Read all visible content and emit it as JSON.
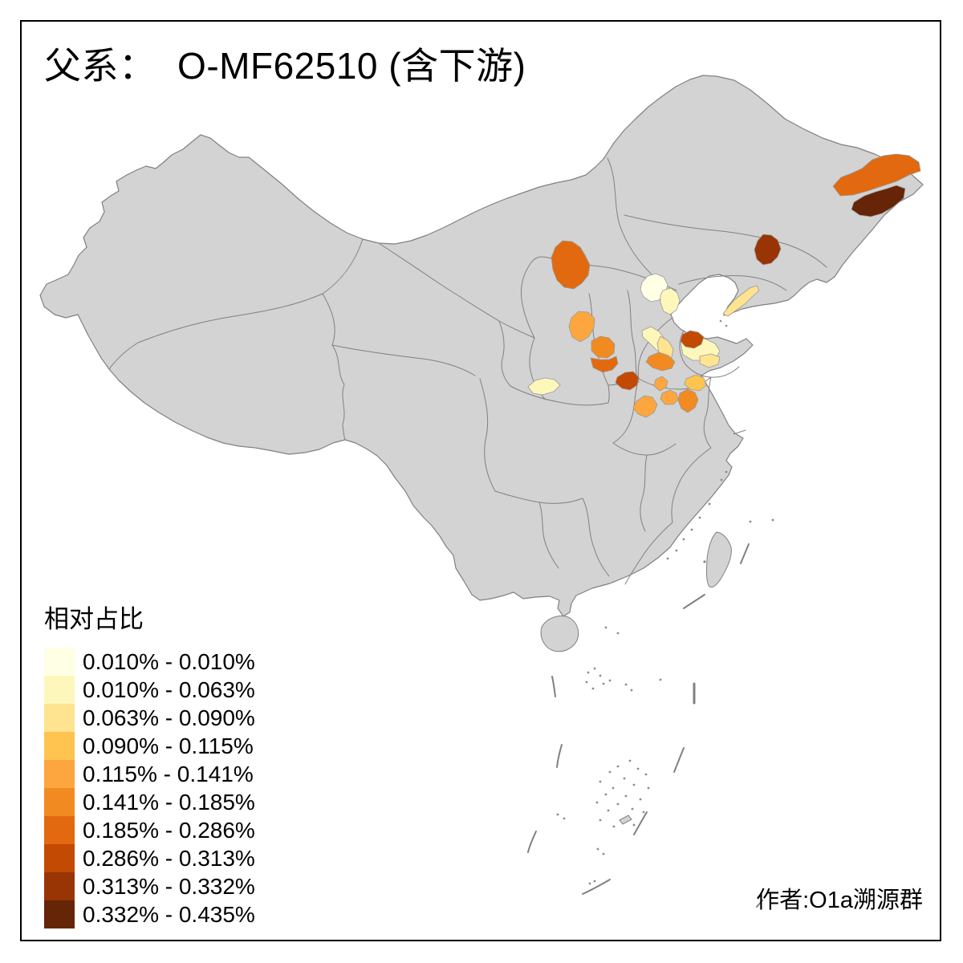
{
  "title": "父系：  O-MF62510 (含下游)",
  "attribution": "作者:O1a溯源群",
  "legend": {
    "title": "相对占比",
    "classes": [
      {
        "label": "0.010% - 0.010%",
        "color": "#FFFFE5"
      },
      {
        "label": "0.010% - 0.063%",
        "color": "#FEF7BC"
      },
      {
        "label": "0.063% - 0.090%",
        "color": "#FEE391"
      },
      {
        "label": "0.090% - 0.115%",
        "color": "#FEC44F"
      },
      {
        "label": "0.115% - 0.141%",
        "color": "#FDA63F"
      },
      {
        "label": "0.141% - 0.185%",
        "color": "#F28A22"
      },
      {
        "label": "0.185% - 0.286%",
        "color": "#E2690F"
      },
      {
        "label": "0.286% - 0.313%",
        "color": "#C24A02"
      },
      {
        "label": "0.313% - 0.332%",
        "color": "#993404"
      },
      {
        "label": "0.332% - 0.435%",
        "color": "#662506"
      }
    ]
  },
  "map": {
    "base_fill": "#D3D3D3",
    "border_color": "#808080",
    "sea_color": "#FFFFFF",
    "frame_color": "#000000",
    "regions": [
      {
        "name": "beijing",
        "class_index": 0
      },
      {
        "name": "langfang-tianjin",
        "class_index": 1
      },
      {
        "name": "hebei-south-strip",
        "class_index": 1
      },
      {
        "name": "hebei-south-east",
        "class_index": 2
      },
      {
        "name": "shandong-west",
        "class_index": 1
      },
      {
        "name": "shandong-central",
        "class_index": 2
      },
      {
        "name": "gansu-lanzhou",
        "class_index": 1
      },
      {
        "name": "shandong-southwest",
        "class_index": 3
      },
      {
        "name": "liaoning-dalian",
        "class_index": 2
      },
      {
        "name": "shanxi-north",
        "class_index": 4
      },
      {
        "name": "henan-central-small",
        "class_index": 4
      },
      {
        "name": "henan-zhengzhou",
        "class_index": 4
      },
      {
        "name": "henan-nanyang",
        "class_index": 4
      },
      {
        "name": "shanxi-central",
        "class_index": 5
      },
      {
        "name": "henan-north",
        "class_index": 5
      },
      {
        "name": "henan-east",
        "class_index": 5
      },
      {
        "name": "shanxi-south",
        "class_index": 6
      },
      {
        "name": "inner-mongolia-west",
        "class_index": 6
      },
      {
        "name": "heilongjiang-northeast",
        "class_index": 6
      },
      {
        "name": "henan-sanmenxia",
        "class_index": 7
      },
      {
        "name": "shandong-north-coast",
        "class_index": 7
      },
      {
        "name": "jilin-central",
        "class_index": 8
      },
      {
        "name": "heilongjiang-east",
        "class_index": 9
      }
    ]
  }
}
